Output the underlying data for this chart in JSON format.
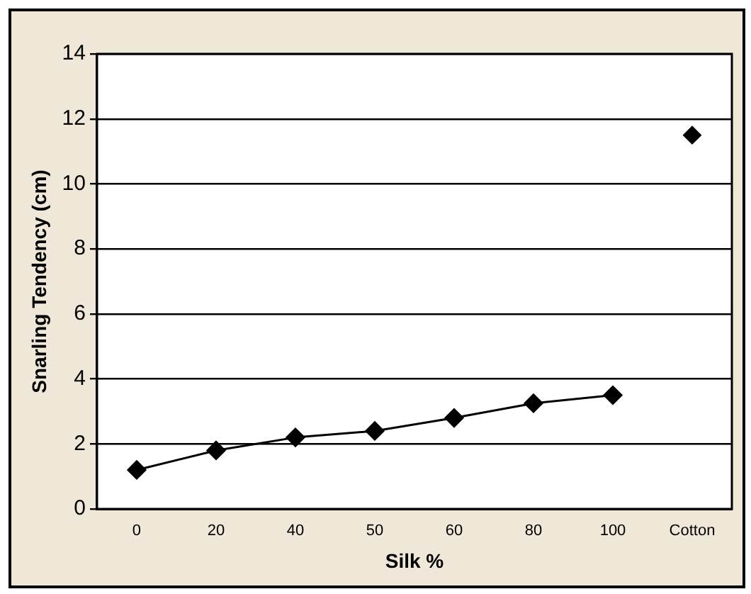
{
  "chart_data": {
    "type": "line",
    "xlabel": "Silk %",
    "ylabel": "Snarling Tendency (cm)",
    "categories": [
      "0",
      "20",
      "40",
      "50",
      "60",
      "80",
      "100",
      "Cotton"
    ],
    "series": [
      {
        "color": "#000000",
        "values": [
          1.2,
          1.8,
          2.2,
          2.4,
          2.8,
          3.25,
          3.5,
          null
        ]
      },
      {
        "type": "scatter",
        "color": "#000000",
        "values": [
          null,
          null,
          null,
          null,
          null,
          null,
          null,
          11.5
        ]
      }
    ],
    "ylim": [
      0,
      14
    ],
    "yticks": [
      0,
      2,
      4,
      6,
      8,
      10,
      12,
      14
    ],
    "grid": "y",
    "legend": false,
    "marker": "diamond",
    "line_style": "solid"
  }
}
